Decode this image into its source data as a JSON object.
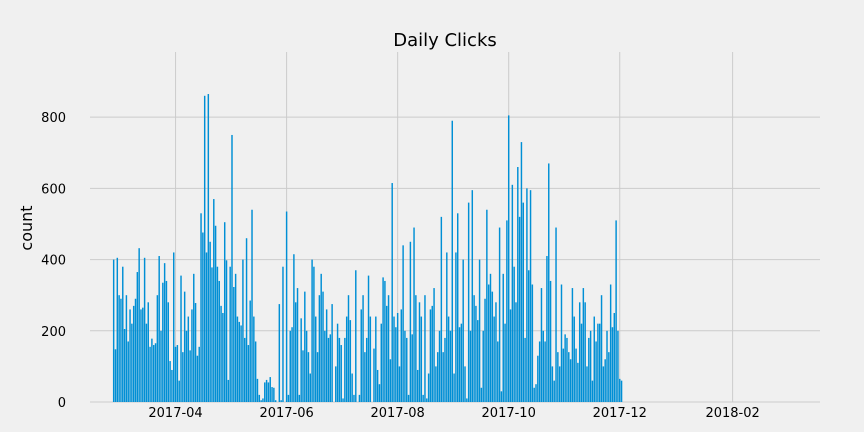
{
  "chart_data": {
    "type": "bar",
    "title": "Daily Clicks",
    "xlabel": "",
    "ylabel": "count",
    "grid": true,
    "bar_color": "#008fd5",
    "background": "#f0f0f0",
    "grid_color": "#cbcbcb",
    "x_axis": {
      "type": "date",
      "range": [
        "2017-02-13",
        "2018-03-21"
      ],
      "ticks": [
        "2017-04-01",
        "2017-06-01",
        "2017-08-01",
        "2017-10-01",
        "2017-12-01",
        "2018-02-01"
      ],
      "tick_labels": [
        "2017-04",
        "2017-06",
        "2017-08",
        "2017-10",
        "2017-12",
        "2018-02"
      ]
    },
    "y_axis": {
      "range": [
        0,
        910
      ],
      "ticks": [
        0,
        200,
        400,
        600,
        800
      ],
      "tick_labels": [
        "0",
        "200",
        "400",
        "600",
        "800"
      ]
    },
    "series": [
      {
        "x_start": "2017-02-26",
        "values": [
          400,
          148,
          405,
          300,
          290,
          380,
          205,
          300,
          170,
          260,
          220,
          270,
          290,
          365,
          432,
          260,
          265,
          405,
          220,
          280,
          155,
          178,
          160,
          165,
          300,
          410,
          200,
          335,
          390,
          340,
          280,
          115,
          90,
          420,
          155,
          160,
          60,
          355,
          140,
          310,
          200,
          240,
          145,
          260,
          360,
          278,
          130,
          155,
          530,
          476,
          860,
          420,
          865,
          450,
          378,
          570,
          495,
          380,
          340,
          270,
          250,
          505,
          398,
          62,
          380,
          750,
          323,
          360,
          240,
          225,
          215,
          400,
          180,
          460,
          160,
          285,
          540,
          240,
          170,
          65,
          20,
          5,
          10,
          55,
          62,
          55,
          70,
          42,
          40,
          5,
          0,
          275,
          5,
          380,
          0,
          535,
          20,
          200,
          210,
          415,
          280,
          320,
          20,
          235,
          145,
          310,
          200,
          140,
          80,
          400,
          380,
          240,
          140,
          300,
          360,
          310,
          200,
          260,
          180,
          190,
          275,
          0,
          100,
          220,
          180,
          160,
          10,
          180,
          240,
          300,
          230,
          80,
          20,
          370,
          0,
          20,
          260,
          300,
          140,
          180,
          355,
          240,
          0,
          150,
          240,
          90,
          50,
          220,
          350,
          340,
          270,
          300,
          120,
          615,
          240,
          210,
          250,
          100,
          260,
          440,
          200,
          180,
          20,
          450,
          190,
          490,
          300,
          90,
          280,
          240,
          20,
          300,
          10,
          80,
          260,
          270,
          320,
          100,
          140,
          200,
          520,
          140,
          180,
          420,
          240,
          200,
          790,
          80,
          420,
          530,
          210,
          220,
          400,
          100,
          10,
          560,
          200,
          595,
          300,
          270,
          230,
          400,
          40,
          200,
          290,
          540,
          330,
          360,
          310,
          240,
          280,
          170,
          490,
          30,
          360,
          220,
          510,
          805,
          260,
          610,
          380,
          280,
          660,
          520,
          730,
          560,
          180,
          600,
          370,
          595,
          330,
          40,
          50,
          130,
          170,
          320,
          200,
          170,
          410,
          670,
          340,
          100,
          60,
          490,
          140,
          100,
          330,
          150,
          190,
          180,
          140,
          120,
          320,
          240,
          150,
          110,
          280,
          220,
          320,
          280,
          100,
          180,
          200,
          60,
          240,
          170,
          220,
          220,
          300,
          100,
          120,
          200,
          140,
          330,
          210,
          250,
          510,
          200,
          65,
          60
        ]
      }
    ]
  }
}
